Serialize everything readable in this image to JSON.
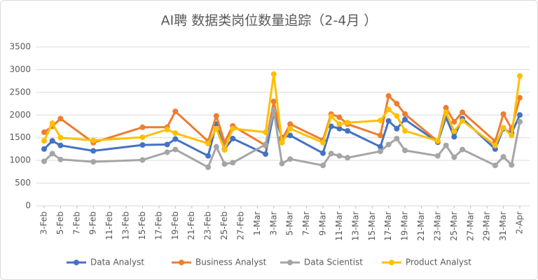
{
  "chart_data": {
    "type": "line",
    "title": "AI聘 数据类岗位数量追踪（2-4月 ）",
    "x": [
      "3-Feb",
      "4-Feb",
      "5-Feb",
      "9-Feb",
      "15-Feb",
      "18-Feb",
      "19-Feb",
      "23-Feb",
      "24-Feb",
      "25-Feb",
      "26-Feb",
      "2-Mar",
      "3-Mar",
      "4-Mar",
      "5-Mar",
      "9-Mar",
      "10-Mar",
      "11-Mar",
      "12-Mar",
      "16-Mar",
      "17-Mar",
      "18-Mar",
      "19-Mar",
      "23-Mar",
      "24-Mar",
      "25-Mar",
      "26-Mar",
      "30-Mar",
      "31-Mar",
      "1-Apr",
      "2-Apr"
    ],
    "xticks": [
      "3-Feb",
      "5-Feb",
      "7-Feb",
      "9-Feb",
      "11-Feb",
      "13-Feb",
      "15-Feb",
      "17-Feb",
      "19-Feb",
      "21-Feb",
      "23-Feb",
      "25-Feb",
      "27-Feb",
      "1-Mar",
      "3-Mar",
      "5-Mar",
      "7-Mar",
      "9-Mar",
      "11-Mar",
      "13-Mar",
      "15-Mar",
      "17-Mar",
      "19-Mar",
      "21-Mar",
      "23-Mar",
      "25-Mar",
      "27-Mar",
      "29-Mar",
      "31-Mar",
      "2-Apr"
    ],
    "series": [
      {
        "name": "Data Analyst",
        "color": "#4472c4",
        "values": [
          1250,
          1430,
          1330,
          1210,
          1340,
          1350,
          1470,
          1100,
          1800,
          1250,
          1480,
          1140,
          2050,
          1500,
          1550,
          1160,
          1750,
          1700,
          1650,
          1300,
          1870,
          1700,
          1900,
          1400,
          1950,
          1520,
          1920,
          1250,
          1700,
          1600,
          2000
        ]
      },
      {
        "name": "Business Analyst",
        "color": "#ed7d31",
        "values": [
          1620,
          1750,
          1920,
          1390,
          1730,
          1730,
          2080,
          1420,
          1980,
          1400,
          1760,
          1330,
          2300,
          1460,
          1800,
          1450,
          2020,
          1950,
          1800,
          1550,
          2420,
          2250,
          2020,
          1420,
          2160,
          1850,
          2060,
          1420,
          2020,
          1700,
          2380
        ]
      },
      {
        "name": "Data Scientist",
        "color": "#a5a5a5",
        "values": [
          980,
          1150,
          1020,
          970,
          1010,
          1180,
          1240,
          850,
          1300,
          920,
          950,
          1350,
          2100,
          930,
          1030,
          890,
          1150,
          1100,
          1060,
          1200,
          1350,
          1480,
          1220,
          1100,
          1330,
          1070,
          1240,
          890,
          1080,
          900,
          1850
        ]
      },
      {
        "name": "Product Analyst",
        "color": "#ffc000",
        "values": [
          1430,
          1820,
          1500,
          1440,
          1510,
          1680,
          1600,
          1370,
          1700,
          1230,
          1700,
          1620,
          2900,
          1390,
          1700,
          1390,
          1970,
          1800,
          1830,
          1880,
          2120,
          1980,
          1650,
          1430,
          2060,
          1640,
          1870,
          1330,
          1720,
          1550,
          2860
        ]
      }
    ],
    "ylim": [
      0,
      3500
    ],
    "yticks": [
      0,
      500,
      1000,
      1500,
      2000,
      2500,
      3000,
      3500
    ],
    "grid": true,
    "legend": "bottom"
  }
}
